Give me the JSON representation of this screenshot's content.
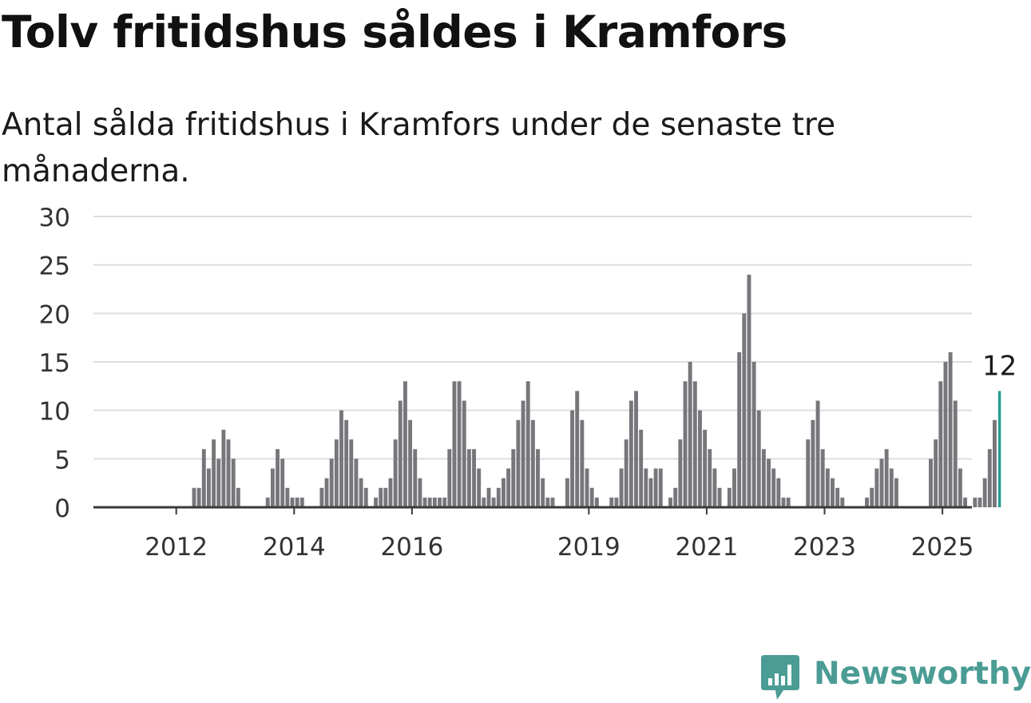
{
  "title": "Tolv fritidshus såldes i Kramfors",
  "subtitle": "Antal sålda fritidshus i Kramfors under de senaste tre månaderna.",
  "brand": {
    "name": "Newsworthy",
    "icon": "newsworthy-logo-icon",
    "color": "#4a9c94"
  },
  "chart_data": {
    "type": "bar",
    "title": "",
    "xlabel": "",
    "ylabel": "",
    "ylim": [
      0,
      30
    ],
    "yticks": [
      0,
      5,
      10,
      15,
      20,
      25,
      30
    ],
    "xticks": [
      {
        "label": "2012",
        "index": 8
      },
      {
        "label": "2014",
        "index": 32
      },
      {
        "label": "2016",
        "index": 56
      },
      {
        "label": "2019",
        "index": 92
      },
      {
        "label": "2021",
        "index": 116
      },
      {
        "label": "2023",
        "index": 140
      },
      {
        "label": "2025",
        "index": 164
      }
    ],
    "grid": true,
    "bar_color": "#77767b",
    "highlight_color": "#2a9d94",
    "highlight_label": "12",
    "values": [
      0,
      0,
      0,
      0,
      0,
      0,
      0,
      0,
      0,
      0,
      2,
      2,
      6,
      4,
      7,
      5,
      8,
      7,
      5,
      2,
      0,
      0,
      0,
      0,
      0,
      1,
      4,
      6,
      5,
      2,
      1,
      1,
      1,
      0,
      0,
      0,
      2,
      3,
      5,
      7,
      10,
      9,
      7,
      5,
      3,
      2,
      0,
      1,
      2,
      2,
      3,
      7,
      11,
      13,
      9,
      6,
      3,
      1,
      1,
      1,
      1,
      1,
      6,
      13,
      13,
      11,
      6,
      6,
      4,
      1,
      2,
      1,
      2,
      3,
      4,
      6,
      9,
      11,
      13,
      9,
      6,
      3,
      1,
      1,
      0,
      0,
      3,
      10,
      12,
      9,
      4,
      2,
      1,
      0,
      0,
      1,
      1,
      4,
      7,
      11,
      12,
      8,
      4,
      3,
      4,
      4,
      0,
      1,
      2,
      7,
      13,
      15,
      13,
      10,
      8,
      6,
      4,
      2,
      0,
      2,
      4,
      16,
      20,
      24,
      15,
      10,
      6,
      5,
      4,
      3,
      1,
      1,
      0,
      0,
      0,
      7,
      9,
      11,
      6,
      4,
      3,
      2,
      1,
      0,
      0,
      0,
      0,
      1,
      2,
      4,
      5,
      6,
      4,
      3,
      0,
      0,
      0,
      0,
      0,
      0,
      5,
      7,
      13,
      15,
      16,
      11,
      4,
      1,
      0,
      1,
      1,
      3,
      6,
      9,
      12
    ]
  }
}
